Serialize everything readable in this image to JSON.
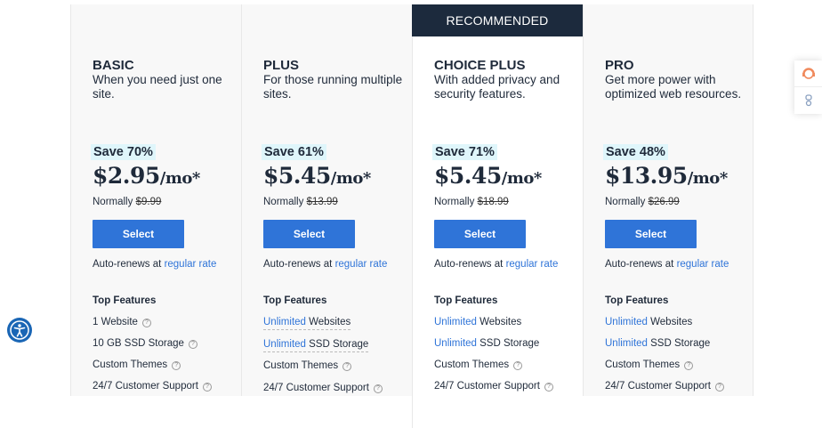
{
  "recommended_label": "RECOMMENDED",
  "plans": [
    {
      "name": "BASIC",
      "desc": "When you need just one site.",
      "save": "Save 70%",
      "price": "$2.95",
      "per": "/mo*",
      "normally_label": "Normally",
      "normal_price": "$9.99",
      "select": "Select",
      "renew_text": "Auto-renews at",
      "renew_link": "regular rate",
      "features_title": "Top Features",
      "features": [
        {
          "hl": "",
          "text": "1 Website"
        },
        {
          "hl": "",
          "text": "10 GB SSD Storage"
        },
        {
          "hl": "",
          "text": "Custom Themes"
        },
        {
          "hl": "",
          "text": "24/7 Customer Support"
        }
      ]
    },
    {
      "name": "PLUS",
      "desc": "For those running multiple sites.",
      "save": "Save 61%",
      "price": "$5.45",
      "per": "/mo*",
      "normally_label": "Normally",
      "normal_price": "$13.99",
      "select": "Select",
      "renew_text": "Auto-renews at",
      "renew_link": "regular rate",
      "features_title": "Top Features",
      "features": [
        {
          "hl": "Unlimited",
          "text": "Websites"
        },
        {
          "hl": "Unlimited",
          "text": "SSD Storage"
        },
        {
          "hl": "",
          "text": "Custom Themes"
        },
        {
          "hl": "",
          "text": "24/7 Customer Support"
        }
      ]
    },
    {
      "name": "CHOICE PLUS",
      "desc": "With added privacy and security features.",
      "save": "Save 71%",
      "price": "$5.45",
      "per": "/mo*",
      "normally_label": "Normally",
      "normal_price": "$18.99",
      "select": "Select",
      "renew_text": "Auto-renews at",
      "renew_link": "regular rate",
      "features_title": "Top Features",
      "features": [
        {
          "hl": "Unlimited",
          "text": "Websites"
        },
        {
          "hl": "Unlimited",
          "text": "SSD Storage"
        },
        {
          "hl": "",
          "text": "Custom Themes"
        },
        {
          "hl": "",
          "text": "24/7 Customer Support"
        }
      ]
    },
    {
      "name": "PRO",
      "desc": "Get more power with optimized web resources.",
      "save": "Save 48%",
      "price": "$13.95",
      "per": "/mo*",
      "normally_label": "Normally",
      "normal_price": "$26.99",
      "select": "Select",
      "renew_text": "Auto-renews at",
      "renew_link": "regular rate",
      "features_title": "Top Features",
      "features": [
        {
          "hl": "Unlimited",
          "text": "Websites"
        },
        {
          "hl": "Unlimited",
          "text": "SSD Storage"
        },
        {
          "hl": "",
          "text": "Custom Themes"
        },
        {
          "hl": "",
          "text": "24/7 Customer Support"
        }
      ]
    }
  ],
  "colors": {
    "accent": "#2f74d8",
    "recommended_bg": "#1c2a3d",
    "save_bg": "#dff6fb"
  },
  "icons": [
    "help-circle-icon",
    "support-agent-icon",
    "chat-bot-icon",
    "accessibility-icon"
  ]
}
